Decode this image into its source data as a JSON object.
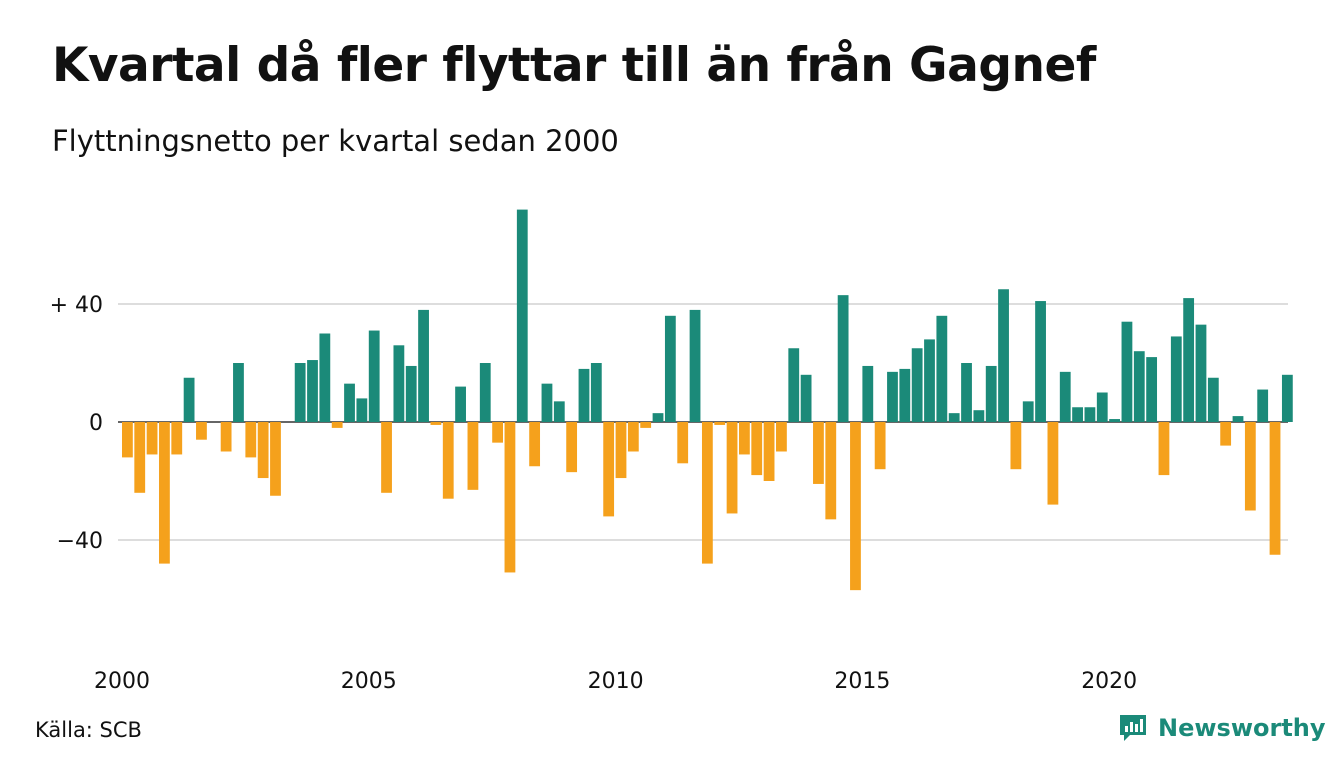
{
  "title": "Kvartal då fler flyttar till än från Gagnef",
  "subtitle": "Flyttningsnetto per kvartal sedan 2000",
  "source": "Källa: SCB",
  "brand": "Newsworthy",
  "colors": {
    "positive": "#1b8a79",
    "negative": "#f5a11c",
    "grid": "#dddddd",
    "brand": "#1b8a79"
  },
  "chart_data": {
    "type": "bar",
    "title": "Kvartal då fler flyttar till än från Gagnef",
    "subtitle": "Flyttningsnetto per kvartal sedan 2000",
    "xlabel": "",
    "ylabel": "",
    "ylim": [
      -72,
      72
    ],
    "grid": true,
    "y_ticks": [
      {
        "value": 40,
        "label": "+ 40"
      },
      {
        "value": 0,
        "label": "0"
      },
      {
        "value": -40,
        "label": "−40"
      }
    ],
    "x_ticks": [
      {
        "value": 2000,
        "label": "2000"
      },
      {
        "value": 2005,
        "label": "2005"
      },
      {
        "value": 2010,
        "label": "2010"
      },
      {
        "value": 2015,
        "label": "2015"
      },
      {
        "value": 2020,
        "label": "2020"
      }
    ],
    "start_year": 2000,
    "categories": [
      "2000 Q1",
      "2000 Q2",
      "2000 Q3",
      "2000 Q4",
      "2001 Q1",
      "2001 Q2",
      "2001 Q3",
      "2001 Q4",
      "2002 Q1",
      "2002 Q2",
      "2002 Q3",
      "2002 Q4",
      "2003 Q1",
      "2003 Q2",
      "2003 Q3",
      "2003 Q4",
      "2004 Q1",
      "2004 Q2",
      "2004 Q3",
      "2004 Q4",
      "2005 Q1",
      "2005 Q2",
      "2005 Q3",
      "2005 Q4",
      "2006 Q1",
      "2006 Q2",
      "2006 Q3",
      "2006 Q4",
      "2007 Q1",
      "2007 Q2",
      "2007 Q3",
      "2007 Q4",
      "2008 Q1",
      "2008 Q2",
      "2008 Q3",
      "2008 Q4",
      "2009 Q1",
      "2009 Q2",
      "2009 Q3",
      "2009 Q4",
      "2010 Q1",
      "2010 Q2",
      "2010 Q3",
      "2010 Q4",
      "2011 Q1",
      "2011 Q2",
      "2011 Q3",
      "2011 Q4",
      "2012 Q1",
      "2012 Q2",
      "2012 Q3",
      "2012 Q4",
      "2013 Q1",
      "2013 Q2",
      "2013 Q3",
      "2013 Q4",
      "2014 Q1",
      "2014 Q2",
      "2014 Q3",
      "2014 Q4",
      "2015 Q1",
      "2015 Q2",
      "2015 Q3",
      "2015 Q4",
      "2016 Q1",
      "2016 Q2",
      "2016 Q3",
      "2016 Q4",
      "2017 Q1",
      "2017 Q2",
      "2017 Q3",
      "2017 Q4",
      "2018 Q1",
      "2018 Q2",
      "2018 Q3",
      "2018 Q4",
      "2019 Q1",
      "2019 Q2",
      "2019 Q3",
      "2019 Q4",
      "2020 Q1",
      "2020 Q2",
      "2020 Q3",
      "2020 Q4",
      "2021 Q1",
      "2021 Q2",
      "2021 Q3",
      "2021 Q4",
      "2022 Q1",
      "2022 Q2",
      "2022 Q3",
      "2022 Q4",
      "2023 Q1",
      "2023 Q2",
      "2023 Q3",
      "2023 Q4"
    ],
    "values": [
      -12,
      -24,
      -11,
      -48,
      -11,
      15,
      -6,
      0,
      -10,
      20,
      -12,
      -19,
      -25,
      0,
      20,
      21,
      30,
      -2,
      13,
      8,
      31,
      -24,
      26,
      19,
      38,
      -1,
      -26,
      12,
      -23,
      20,
      -7,
      -51,
      72,
      -15,
      13,
      7,
      -17,
      18,
      20,
      -32,
      -19,
      -10,
      -2,
      3,
      36,
      -14,
      38,
      -48,
      -1,
      -31,
      -11,
      -18,
      -20,
      -10,
      25,
      16,
      -21,
      -33,
      43,
      -57,
      19,
      -16,
      17,
      18,
      25,
      28,
      36,
      3,
      20,
      4,
      19,
      45,
      -16,
      7,
      41,
      -28,
      17,
      5,
      5,
      10,
      1,
      34,
      24,
      22,
      -18,
      29,
      42,
      33,
      15,
      -8,
      2,
      -30,
      11,
      -45,
      16,
      0
    ]
  }
}
